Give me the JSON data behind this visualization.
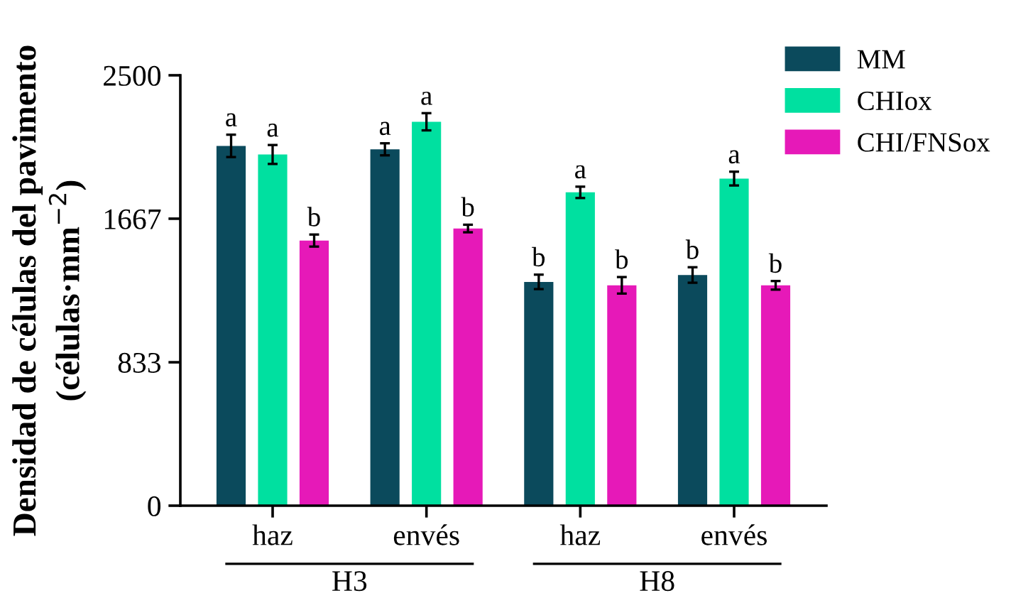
{
  "chart_data": {
    "type": "bar",
    "ylabel": "Densidad de células del pavimento\n(células·mm$^{−2}$)",
    "categories": [
      "haz",
      "envés",
      "haz",
      "envés"
    ],
    "annotations": [
      "H3",
      "H8"
    ],
    "series": [
      {
        "name": "MM",
        "color": "#0b4a5c",
        "values": [
          2090,
          2070,
          1300,
          1340
        ],
        "errors": [
          65,
          35,
          42,
          45
        ],
        "value_labels": [
          "a",
          "a",
          "b",
          "b"
        ]
      },
      {
        "name": "CHIox",
        "color": "#00e0a0",
        "values": [
          2040,
          2230,
          1820,
          1900
        ],
        "errors": [
          55,
          50,
          33,
          40
        ],
        "value_labels": [
          "a",
          "a",
          "a",
          "a"
        ]
      },
      {
        "name": "CHI/FNSox",
        "color": "#e619b8",
        "values": [
          1540,
          1610,
          1280,
          1280
        ],
        "errors": [
          35,
          22,
          48,
          25
        ],
        "value_labels": [
          "b",
          "b",
          "b",
          "b"
        ]
      }
    ],
    "ylim": [
      0,
      2500
    ],
    "yticks": [
      0,
      833,
      1667,
      2500
    ],
    "grid": false,
    "legend": "top right"
  }
}
